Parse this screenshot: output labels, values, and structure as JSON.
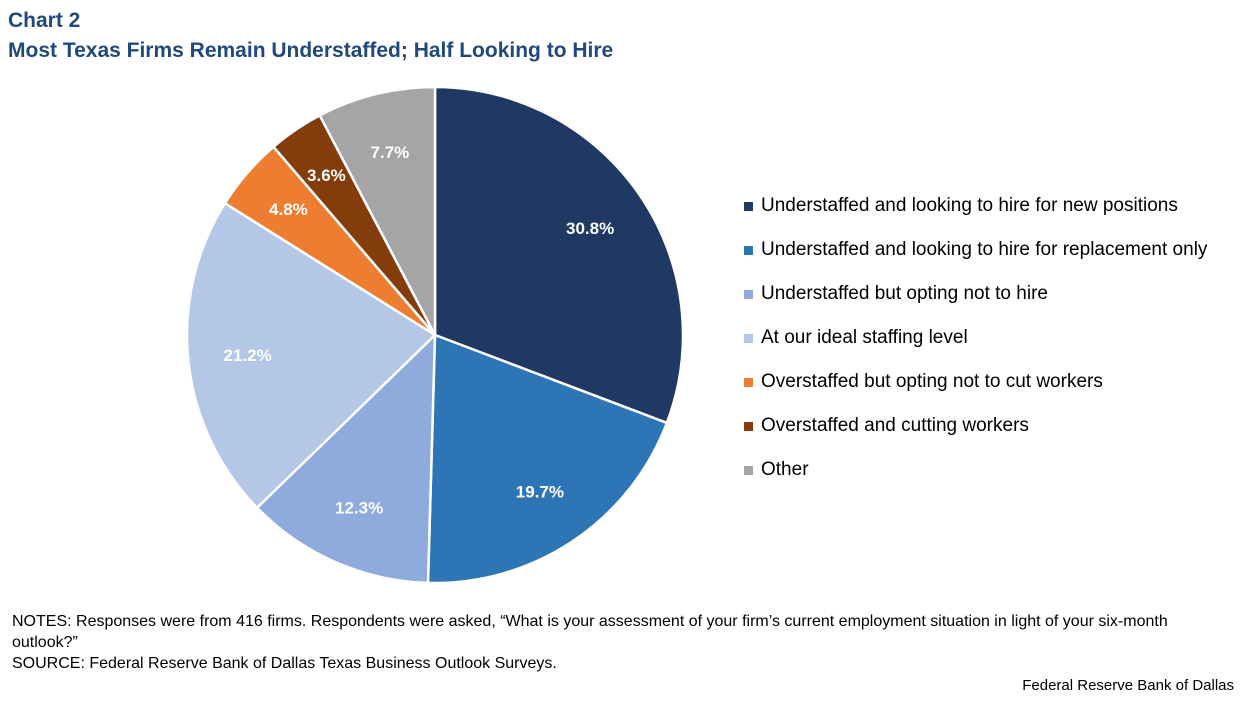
{
  "header": {
    "chart_number": "Chart 2",
    "title": "Most Texas Firms Remain Understaffed; Half Looking to Hire"
  },
  "chart_data": {
    "type": "pie",
    "title": "Most Texas Firms Remain Understaffed; Half Looking to Hire",
    "legend_position": "right",
    "unit": "%",
    "slices": [
      {
        "label": "Understaffed and looking to hire for new positions",
        "value": 30.8,
        "display": "30.8%",
        "color": "#1f3864"
      },
      {
        "label": "Understaffed and looking to hire for replacement only",
        "value": 19.7,
        "display": "19.7%",
        "color": "#2e75b6"
      },
      {
        "label": "Understaffed but opting not to hire",
        "value": 12.3,
        "display": "12.3%",
        "color": "#8faadc"
      },
      {
        "label": "At our ideal staffing level",
        "value": 21.2,
        "display": "21.2%",
        "color": "#b4c7e7"
      },
      {
        "label": "Overstaffed but opting not to cut workers",
        "value": 4.8,
        "display": "4.8%",
        "color": "#ed7d31"
      },
      {
        "label": "Overstaffed and cutting workers",
        "value": 3.6,
        "display": "3.6%",
        "color": "#843c0c"
      },
      {
        "label": "Other",
        "value": 7.7,
        "display": "7.7%",
        "color": "#a5a5a5"
      }
    ]
  },
  "notes": {
    "notes_text": "NOTES: Responses were from 416 firms. Respondents were asked, “What is your assessment of your firm’s current employment situation in light of your six-month outlook?”",
    "source_text": "SOURCE: Federal Reserve Bank of Dallas Texas Business Outlook Surveys."
  },
  "credit": "Federal Reserve Bank of Dallas"
}
